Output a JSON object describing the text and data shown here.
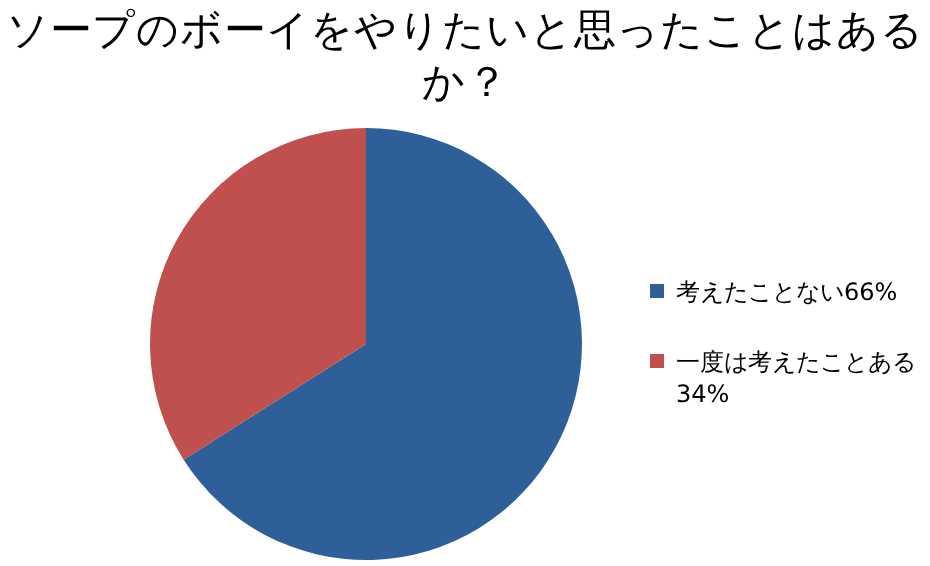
{
  "chart_data": {
    "type": "pie",
    "title": "ソープのボーイをやりたいと思ったことはあるか？",
    "categories": [
      "考えたことない66%",
      "一度は考えたことある34%"
    ],
    "values": [
      66,
      34
    ],
    "colors": [
      "#2f5f98",
      "#c0504d"
    ],
    "legend": "right"
  }
}
